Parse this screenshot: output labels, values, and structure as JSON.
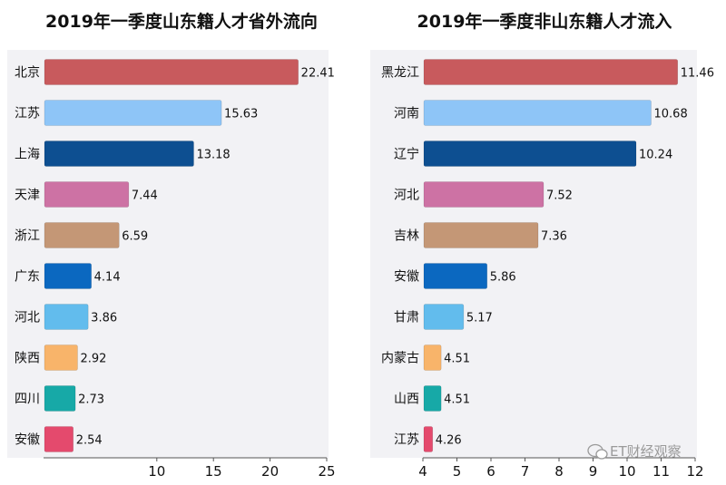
{
  "watermark": {
    "text": "ET财经观察",
    "icon": "wechat-icon"
  },
  "chart_data": [
    {
      "type": "bar",
      "orientation": "horizontal",
      "title": "2019年一季度山东籍人才省外流向",
      "categories": [
        "北京",
        "江苏",
        "上海",
        "天津",
        "浙江",
        "广东",
        "河北",
        "陕西",
        "四川",
        "安徽"
      ],
      "values": [
        22.41,
        15.63,
        13.18,
        7.44,
        6.59,
        4.14,
        3.86,
        2.92,
        2.73,
        2.54
      ],
      "value_labels": [
        "22.41",
        "15.63",
        "13.18",
        "7.44",
        "6.59",
        "4.14",
        "3.86",
        "2.92",
        "2.73",
        "2.54"
      ],
      "colors": [
        "#c85a5d",
        "#8ec5f7",
        "#0d4f91",
        "#cd72a4",
        "#c49776",
        "#0b68c0",
        "#62bced",
        "#f8b46a",
        "#17a9a7",
        "#e44a6d"
      ],
      "xlim": [
        0,
        25
      ],
      "xticks": [
        10,
        15,
        20,
        25
      ],
      "xtick_labels": [
        "10",
        "15",
        "20",
        "25"
      ],
      "grid": false,
      "legend": "none"
    },
    {
      "type": "bar",
      "orientation": "horizontal",
      "title": "2019年一季度非山东籍人才流入",
      "categories": [
        "黑龙江",
        "河南",
        "辽宁",
        "河北",
        "吉林",
        "安徽",
        "甘肃",
        "内蒙古",
        "山西",
        "江苏"
      ],
      "values": [
        11.46,
        10.68,
        10.24,
        7.52,
        7.36,
        5.86,
        5.17,
        4.51,
        4.51,
        4.26
      ],
      "value_labels": [
        "11.46",
        "10.68",
        "10.24",
        "7.52",
        "7.36",
        "5.86",
        "5.17",
        "4.51",
        "4.51",
        "4.26"
      ],
      "colors": [
        "#c85a5d",
        "#8ec5f7",
        "#0d4f91",
        "#cd72a4",
        "#c49776",
        "#0b68c0",
        "#62bced",
        "#f8b46a",
        "#17a9a7",
        "#e44a6d"
      ],
      "xlim": [
        4,
        12
      ],
      "xticks": [
        4,
        5,
        6,
        7,
        8,
        9,
        10,
        11,
        12
      ],
      "xtick_labels": [
        "4",
        "5",
        "6",
        "7",
        "8",
        "9",
        "10",
        "11",
        "12"
      ],
      "grid": false,
      "legend": "none"
    }
  ]
}
